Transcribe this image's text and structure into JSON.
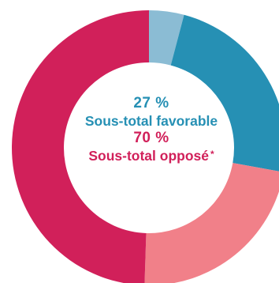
{
  "chart_data": {
    "type": "pie",
    "subtype": "donut",
    "slices": [
      {
        "value": 4,
        "color": "#8bbcd4"
      },
      {
        "value": 23,
        "color": "#2690b4"
      },
      {
        "value": 22,
        "color": "#f18089"
      },
      {
        "value": 48,
        "color": "#d1205a"
      }
    ]
  },
  "center": {
    "favorable_pct": "27 %",
    "favorable_label": "Sous-total favorable",
    "opposed_pct": "70 %",
    "opposed_label": "Sous-total opposé",
    "opposed_footnote": "*"
  },
  "colors": {
    "favorable_text": "#2690b4",
    "opposed_text": "#d1205a"
  }
}
